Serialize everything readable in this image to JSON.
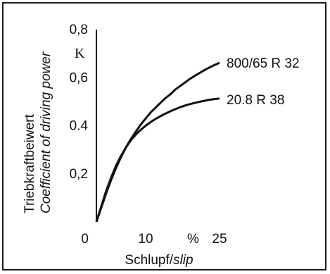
{
  "chart_data": {
    "type": "line",
    "symbol": "K",
    "ylabel_de": "Triebkraftbeiwert",
    "ylabel_en": "Coefficient of driving power",
    "xlabel_de": "Schlupf/",
    "xlabel_en": "slip",
    "x_unit": "%",
    "xlim": [
      0,
      25
    ],
    "ylim": [
      0,
      0.8
    ],
    "x_ticks": [
      {
        "value": 0,
        "label": "0"
      },
      {
        "value": 10,
        "label": "10"
      },
      {
        "value": 25,
        "label": "25"
      }
    ],
    "y_ticks": [
      {
        "value": 0.2,
        "label": "0,2"
      },
      {
        "value": 0.4,
        "label": "0.4"
      },
      {
        "value": 0.6,
        "label": "0,6"
      },
      {
        "value": 0.8,
        "label": "0,8"
      }
    ],
    "series": [
      {
        "name": "800/65 R 32",
        "color": "#111111",
        "x": [
          0,
          1,
          2,
          3,
          4,
          5,
          6,
          7,
          8,
          9,
          10,
          11,
          12,
          13,
          14,
          15,
          16,
          17,
          18,
          19,
          20,
          21,
          22,
          23,
          24,
          25
        ],
        "y": [
          0.0,
          0.06,
          0.12,
          0.175,
          0.225,
          0.27,
          0.31,
          0.345,
          0.375,
          0.405,
          0.43,
          0.455,
          0.475,
          0.495,
          0.515,
          0.53,
          0.55,
          0.565,
          0.58,
          0.595,
          0.608,
          0.62,
          0.632,
          0.643,
          0.653,
          0.662
        ]
      },
      {
        "name": "20.8 R 38",
        "color": "#111111",
        "x": [
          0,
          1,
          2,
          3,
          4,
          5,
          6,
          7,
          8,
          9,
          10,
          11,
          12,
          13,
          14,
          15,
          16,
          17,
          18,
          19,
          20,
          21,
          22,
          23,
          24,
          25
        ],
        "y": [
          0.0,
          0.065,
          0.13,
          0.185,
          0.235,
          0.275,
          0.31,
          0.34,
          0.363,
          0.383,
          0.4,
          0.415,
          0.428,
          0.44,
          0.45,
          0.46,
          0.469,
          0.477,
          0.484,
          0.49,
          0.495,
          0.5,
          0.504,
          0.508,
          0.511,
          0.513
        ]
      }
    ]
  }
}
